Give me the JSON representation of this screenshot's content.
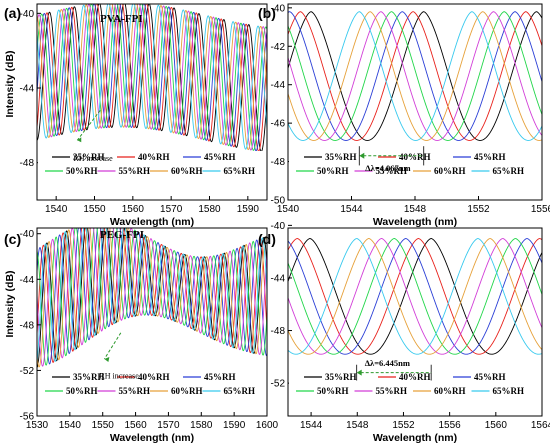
{
  "colors": {
    "35": "#000000",
    "40": "#e8221c",
    "45": "#2b3fd6",
    "50": "#22d64a",
    "55": "#d23fd8",
    "60": "#e6a13a",
    "65": "#38c9ee",
    "annotation": "#2e9a2e"
  },
  "chart_data": [
    {
      "panel": "(a)",
      "type": "line",
      "title": "PVA-FPI",
      "xlabel": "Wavelength (nm)",
      "ylabel": "Intensity (dB)",
      "xlim": [
        1535,
        1595
      ],
      "ylim": [
        -50,
        -39.5
      ],
      "xticks": [
        1540,
        1550,
        1560,
        1570,
        1580,
        1590
      ],
      "yticks": [
        -48,
        -44,
        -40
      ],
      "legend": [
        "35%RH",
        "40%RH",
        "45%RH",
        "50%RH",
        "55%RH",
        "60%RH",
        "65%RH"
      ],
      "legend_position": "bottom",
      "annotation": "RH increase",
      "curve_model": {
        "period_nm": 6.5,
        "dip_shift_per_step_nm": -0.68,
        "max_db": -40.1,
        "dip_db": -46.8
      }
    },
    {
      "panel": "(b)",
      "type": "line",
      "title": "",
      "xlabel": "Wavelength (nm)",
      "ylabel": "",
      "xlim": [
        1540,
        1556
      ],
      "ylim": [
        -50,
        -39.8
      ],
      "xticks": [
        1540,
        1544,
        1548,
        1552,
        1556
      ],
      "yticks": [
        -50,
        -48,
        -46,
        -44,
        -42,
        -40
      ],
      "legend": [
        "35%RH",
        "40%RH",
        "45%RH",
        "50%RH",
        "55%RH",
        "60%RH",
        "65%RH"
      ],
      "legend_position": "bottom",
      "annotation": "Δλ=4.067nm",
      "dips_nm": [
        1548.55,
        1547.88,
        1547.2,
        1546.52,
        1545.85,
        1545.17,
        1544.49
      ],
      "curve_model": {
        "period_nm": 7.1,
        "max_db": -40.2,
        "dip_db": -46.9
      }
    },
    {
      "panel": "(c)",
      "type": "line",
      "title": "PEG-FPI",
      "xlabel": "Wavelength (nm)",
      "ylabel": "Intensity (dB)",
      "xlim": [
        1530,
        1600
      ],
      "ylim": [
        -56,
        -39.5
      ],
      "xticks": [
        1530,
        1540,
        1550,
        1560,
        1570,
        1580,
        1590,
        1600
      ],
      "yticks": [
        -56,
        -52,
        -48,
        -44,
        -40
      ],
      "legend": [
        "35%RH",
        "40%RH",
        "45%RH",
        "50%RH",
        "55%RH",
        "60%RH",
        "65%RH"
      ],
      "legend_position": "bottom",
      "annotation": "RH increase",
      "curve_model": {
        "period_nm": 6.0,
        "dip_shift_per_step_nm": -1.07,
        "max_db": -41.0,
        "dip_db": -50.5
      }
    },
    {
      "panel": "(d)",
      "type": "line",
      "title": "",
      "xlabel": "Wavelength (nm)",
      "ylabel": "",
      "xlim": [
        1542,
        1564
      ],
      "ylim": [
        -54.5,
        -40.2
      ],
      "xticks": [
        1544,
        1548,
        1552,
        1556,
        1560,
        1564
      ],
      "yticks": [
        -52,
        -48,
        -44,
        -40
      ],
      "legend": [
        "35%RH",
        "40%RH",
        "45%RH",
        "50%RH",
        "55%RH",
        "60%RH",
        "65%RH"
      ],
      "legend_position": "bottom",
      "annotation": "Δλ=6.445nm",
      "dips_nm": [
        1554.4,
        1553.3,
        1552.2,
        1551.2,
        1550.1,
        1549.0,
        1547.95
      ],
      "curve_model": {
        "period_nm": 10.5,
        "max_db": -41.0,
        "dip_db": -49.8
      }
    }
  ]
}
